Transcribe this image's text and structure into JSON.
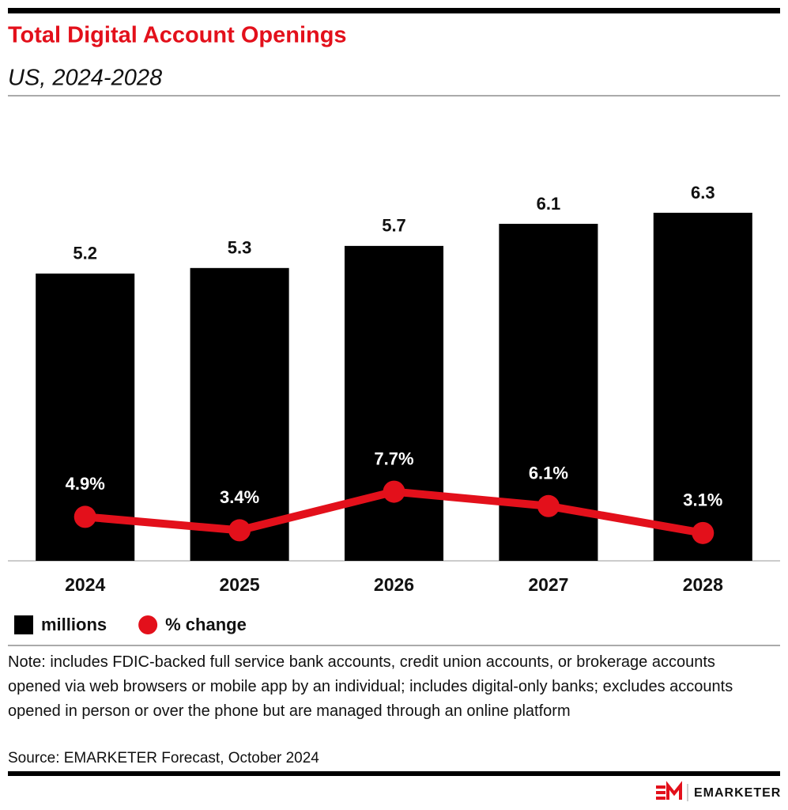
{
  "chart_data": {
    "type": "bar_line",
    "title": "Total Digital Account Openings",
    "subtitle": "US, 2024-2028",
    "categories": [
      "2024",
      "2025",
      "2026",
      "2027",
      "2028"
    ],
    "series": [
      {
        "name": "millions",
        "type": "bar",
        "color": "#000000",
        "values": [
          5.2,
          5.3,
          5.7,
          6.1,
          6.3
        ]
      },
      {
        "name": "% change",
        "type": "line",
        "axis": "y2",
        "color": "#e3101b",
        "values": [
          4.9,
          3.4,
          7.7,
          6.1,
          3.1
        ],
        "value_labels": [
          "4.9%",
          "3.4%",
          "7.7%",
          "6.1%",
          "3.1%"
        ]
      }
    ],
    "ylim": [
      0,
      6.5
    ],
    "y2lim": [
      0,
      40
    ],
    "note": "Note: includes FDIC-backed full service bank accounts, credit union accounts, or brokerage accounts opened via web browsers or mobile app by an individual; includes digital-only banks; excludes accounts opened in person or over the phone but are managed through an online platform",
    "source": "Source: EMARKETER Forecast, October 2024",
    "brand": "EMARKETER"
  }
}
